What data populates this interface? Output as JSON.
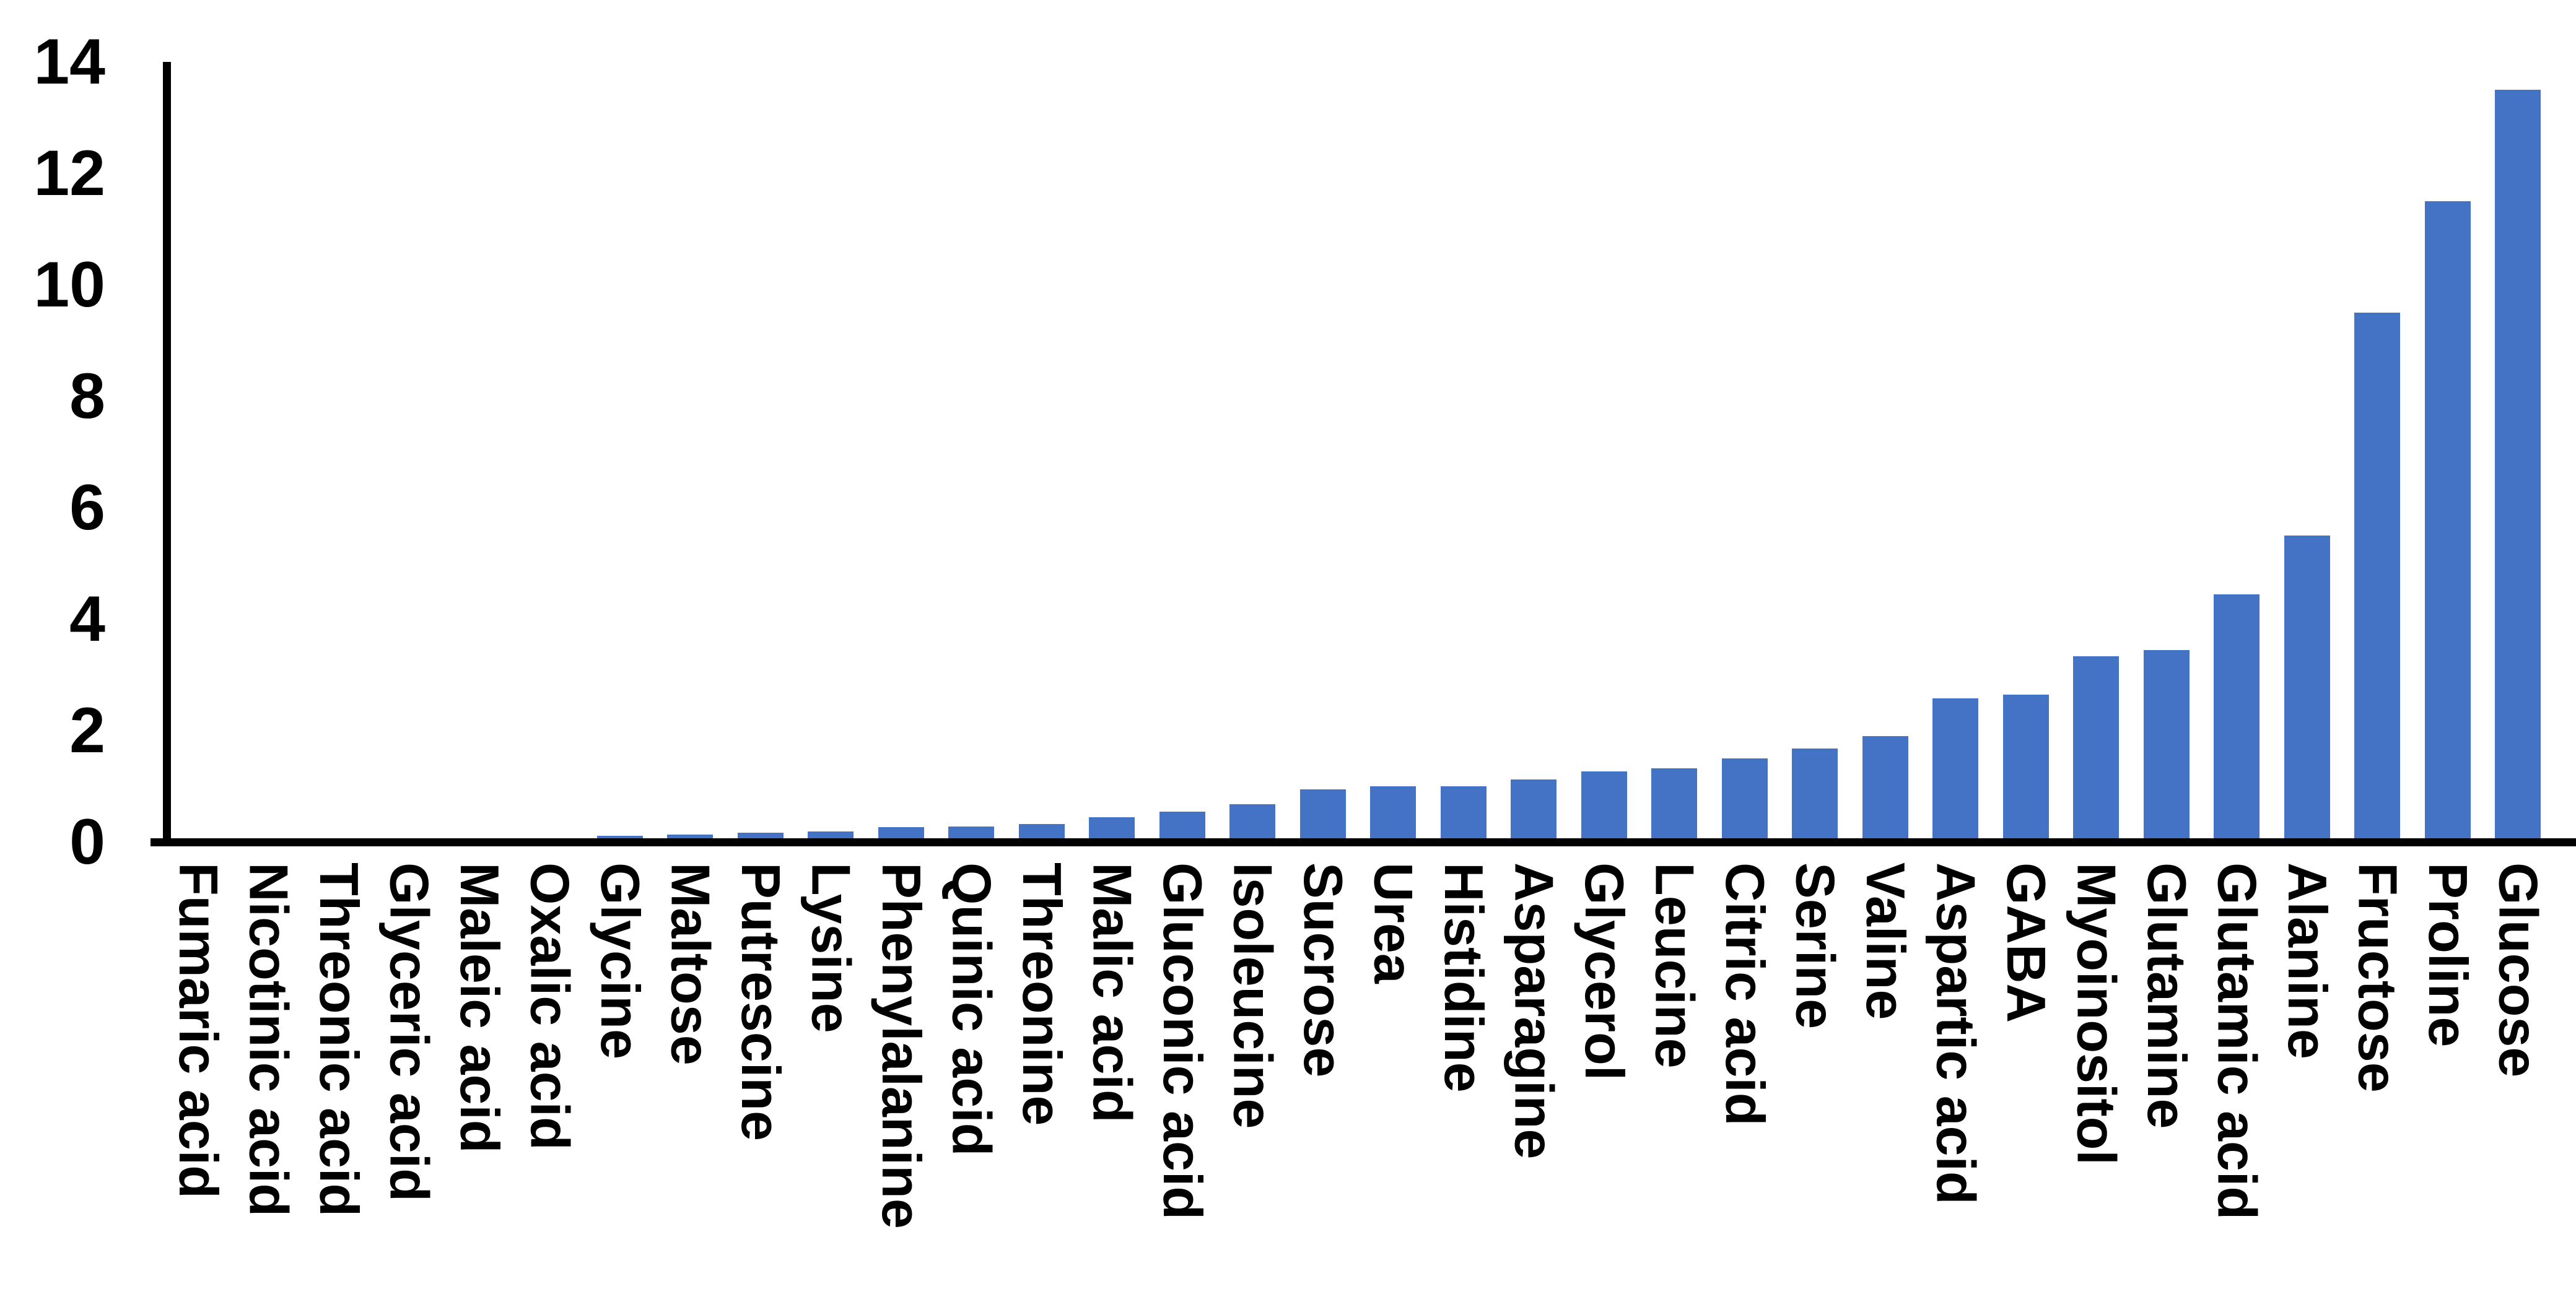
{
  "chart_data": {
    "type": "bar",
    "title": "",
    "xlabel": "",
    "ylabel": "",
    "grid": false,
    "legend": null,
    "ylim": [
      0,
      14
    ],
    "yticks": [
      0,
      2,
      4,
      6,
      8,
      10,
      12,
      14
    ],
    "bar_color": "#4472C4",
    "axis_color": "#000000",
    "categories": [
      "Fumaric acid",
      "Nicotinic acid",
      "Threonic acid",
      "Glyceric acid",
      "Maleic acid",
      "Oxalic acid",
      "Glycine",
      "Maltose",
      "Putrescine",
      "Lysine",
      "Phenylalanine",
      "Quinic acid",
      "Threonine",
      "Malic acid",
      "Gluconic acid",
      "Isoleucine",
      "Sucrose",
      "Urea",
      "Histidine",
      "Asparagine",
      "Glycerol",
      "Leucine",
      "Citric acid",
      "Serine",
      "Valine",
      "Aspartic acid",
      "GABA",
      "Myoinositol",
      "Glutamine",
      "Glutamic acid",
      "Alanine",
      "Fructose",
      "Proline",
      "Glucose"
    ],
    "values": [
      0,
      0,
      0,
      0,
      0,
      0,
      0.11,
      0.13,
      0.17,
      0.19,
      0.27,
      0.28,
      0.32,
      0.44,
      0.55,
      0.68,
      0.94,
      1.0,
      1.0,
      1.12,
      1.27,
      1.32,
      1.5,
      1.68,
      1.9,
      2.58,
      2.64,
      3.33,
      3.45,
      4.45,
      5.5,
      9.5,
      11.5,
      13.5
    ]
  }
}
